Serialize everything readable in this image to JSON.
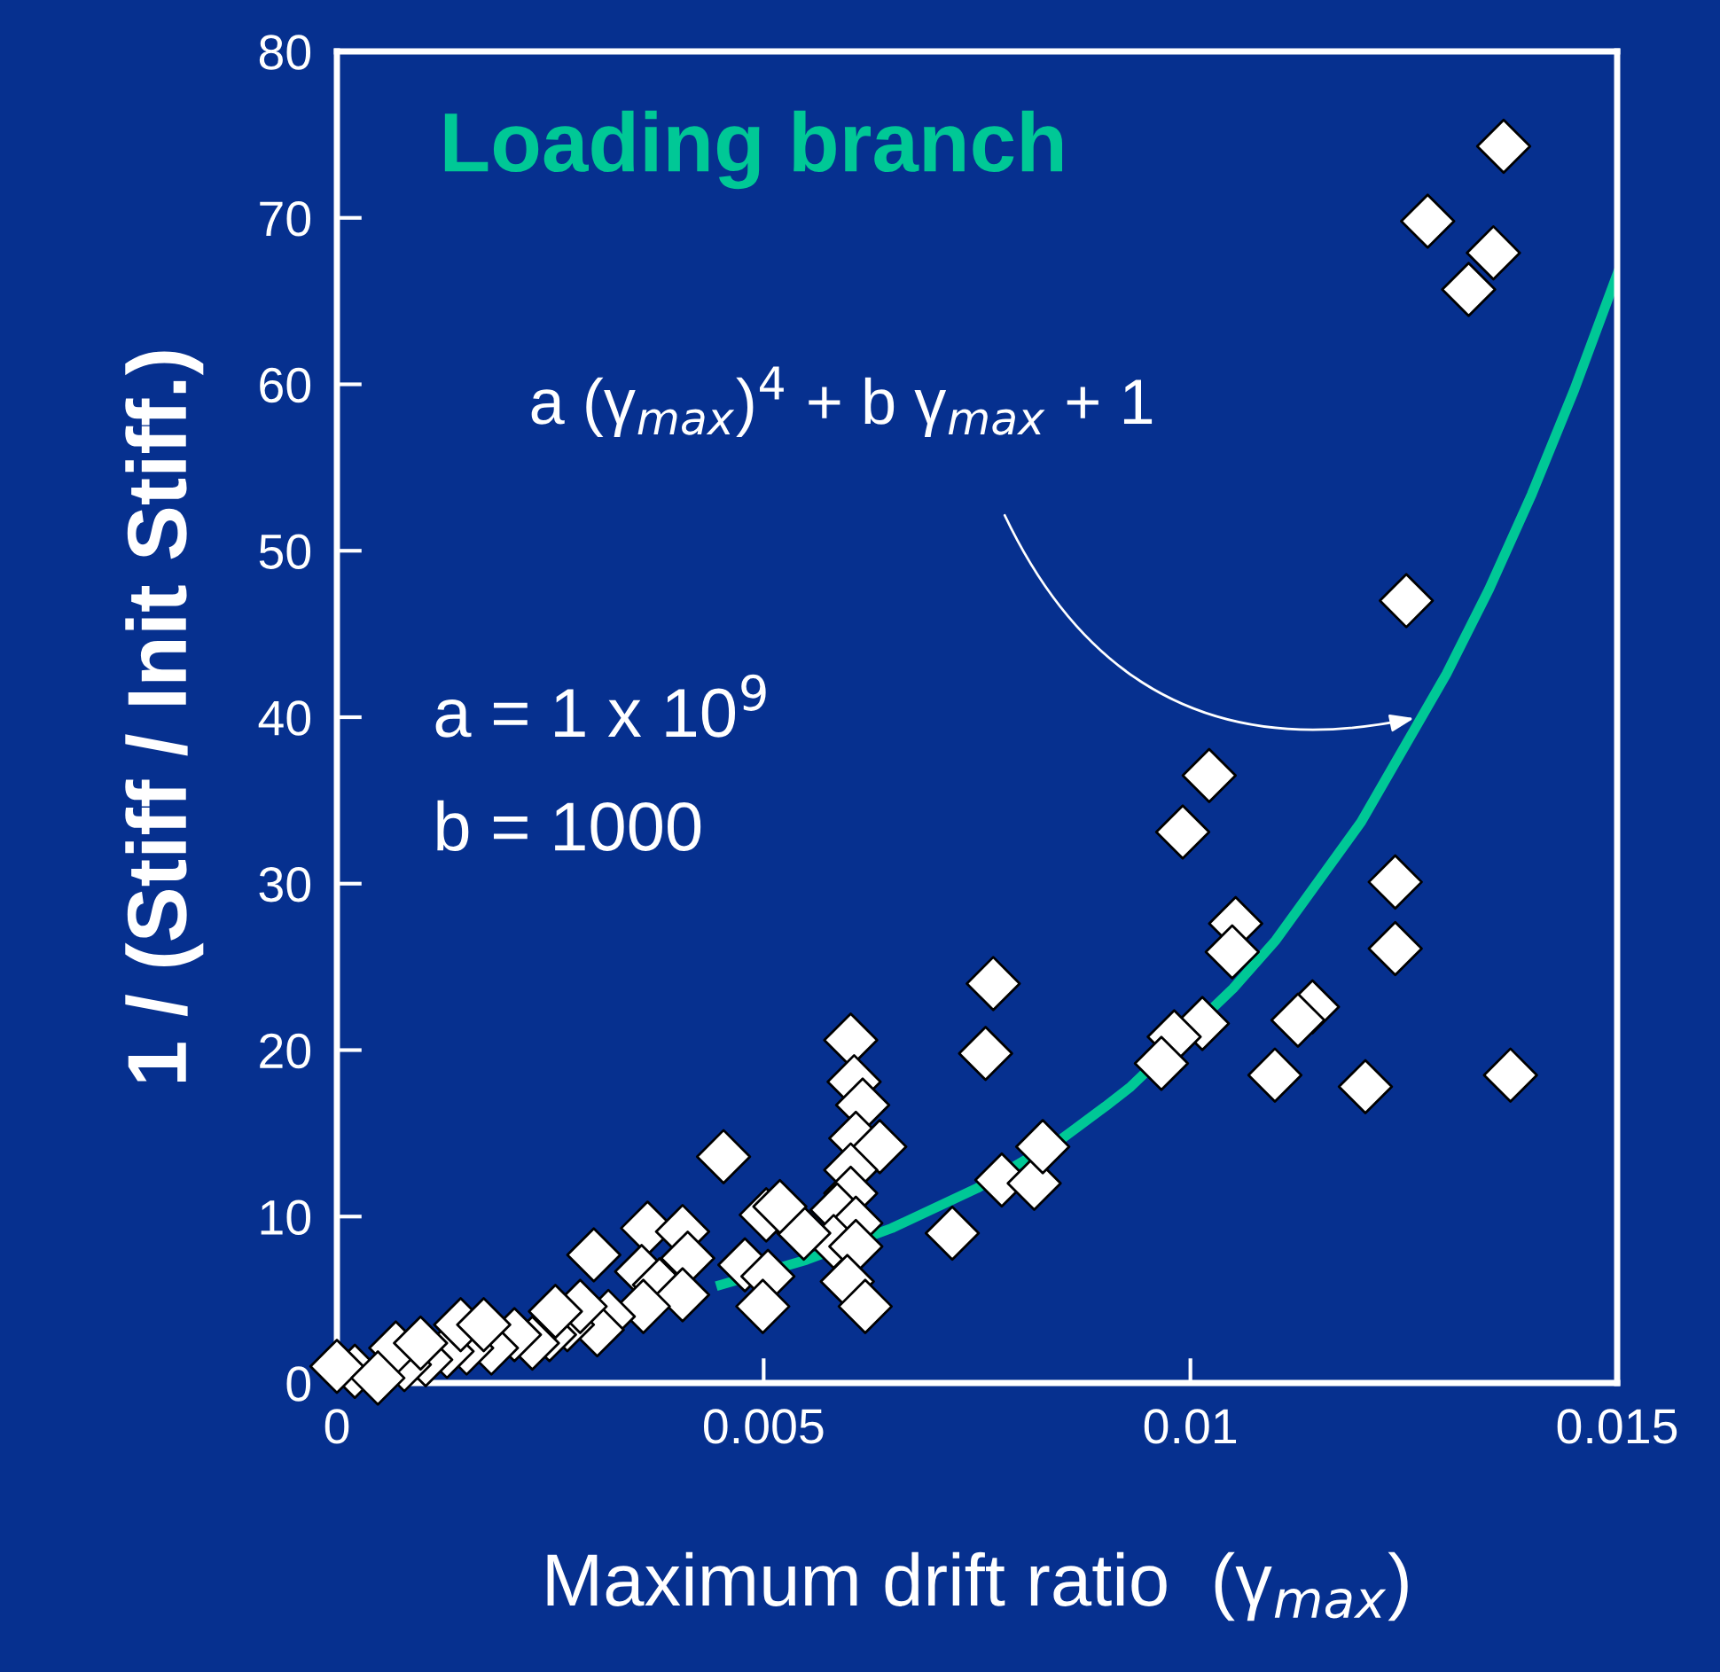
{
  "chart_data": {
    "type": "scatter",
    "xlabel": "Maximum drift ratio  (γ$_{max}$)",
    "ylabel": "1 / (Stiff / Init Stiff.)",
    "annotations": [
      "Loading branch",
      "a (γ$_{max}$)$^{4}$ + b γ$_{max}$ + 1",
      "a = 1 x 10$^{9}$",
      "b = 1000"
    ],
    "xlim": [
      0,
      0.015
    ],
    "xticks": [
      0,
      0.005,
      0.01,
      0.015
    ],
    "ylim": [
      0,
      80
    ],
    "yticks": [
      0,
      10,
      20,
      30,
      40,
      50,
      60,
      70,
      80
    ],
    "grid": false,
    "marker": "diamond",
    "series": [
      {
        "color": "#ffffff",
        "x": [
          0.01367,
          0.01278,
          0.01355,
          0.01326,
          0.01253,
          0.0124,
          0.0124,
          0.01375,
          0.01205,
          0.01143,
          0.01126,
          0.01099,
          0.01022,
          0.00991,
          0.01053,
          0.01049,
          0.01014,
          0.00981,
          0.00966,
          0.00769,
          0.0076,
          0.00779,
          0.00817,
          0.00827,
          0.00721,
          0.00602,
          0.00606,
          0.00616,
          0.00608,
          0.00636,
          0.00602,
          0.00602,
          0.00586,
          0.00608,
          0.00582,
          0.00608,
          0.00598,
          0.00619,
          0.00547,
          0.00503,
          0.00519,
          0.00453,
          0.00478,
          0.00505,
          0.00499,
          0.00301,
          0.00364,
          0.00405,
          0.00411,
          0.00357,
          0.00378,
          0.00405,
          0.00359,
          0.00318,
          0.00305,
          0.0027,
          0.00249,
          0.00229,
          0.00208,
          0.00181,
          0.00152,
          0.00129,
          0.00104,
          0.00079,
          0.00021,
          0.0,
          0.00145,
          0.00172,
          0.00069,
          0.00048,
          0.00285,
          0.00256,
          0.00098
        ],
        "values": [
          74.3,
          69.8,
          67.9,
          65.7,
          47.0,
          30.1,
          26.1,
          18.5,
          17.8,
          22.6,
          21.8,
          18.5,
          36.5,
          33.1,
          27.6,
          25.9,
          21.6,
          20.8,
          19.2,
          24.0,
          19.8,
          12.2,
          12.0,
          14.2,
          9.0,
          20.6,
          18.1,
          16.7,
          14.7,
          14.2,
          12.8,
          11.4,
          10.4,
          9.6,
          8.5,
          8.2,
          6.1,
          4.6,
          9.0,
          10.1,
          10.6,
          13.6,
          7.1,
          6.4,
          4.6,
          7.7,
          9.3,
          9.1,
          7.5,
          6.7,
          5.9,
          5.3,
          4.6,
          4.0,
          3.2,
          3.5,
          2.9,
          2.4,
          2.9,
          2.1,
          2.1,
          1.9,
          1.4,
          1.1,
          0.7,
          1.0,
          3.5,
          3.5,
          2.1,
          0.3,
          4.6,
          4.3,
          2.4
        ]
      },
      {
        "type": "line",
        "color": "#00c896",
        "marker": "none",
        "line_style": "solid",
        "x": [
          0.0045,
          0.0055,
          0.0065,
          0.0075,
          0.0085,
          0.009,
          0.0093,
          0.0105,
          0.011,
          0.012,
          0.013,
          0.0135,
          0.014,
          0.0145,
          0.015
        ],
        "values": [
          5.9,
          7.4,
          9.3,
          11.7,
          14.7,
          16.6,
          17.8,
          23.7,
          26.6,
          33.7,
          42.6,
          47.7,
          53.4,
          59.7,
          66.6
        ]
      }
    ]
  }
}
